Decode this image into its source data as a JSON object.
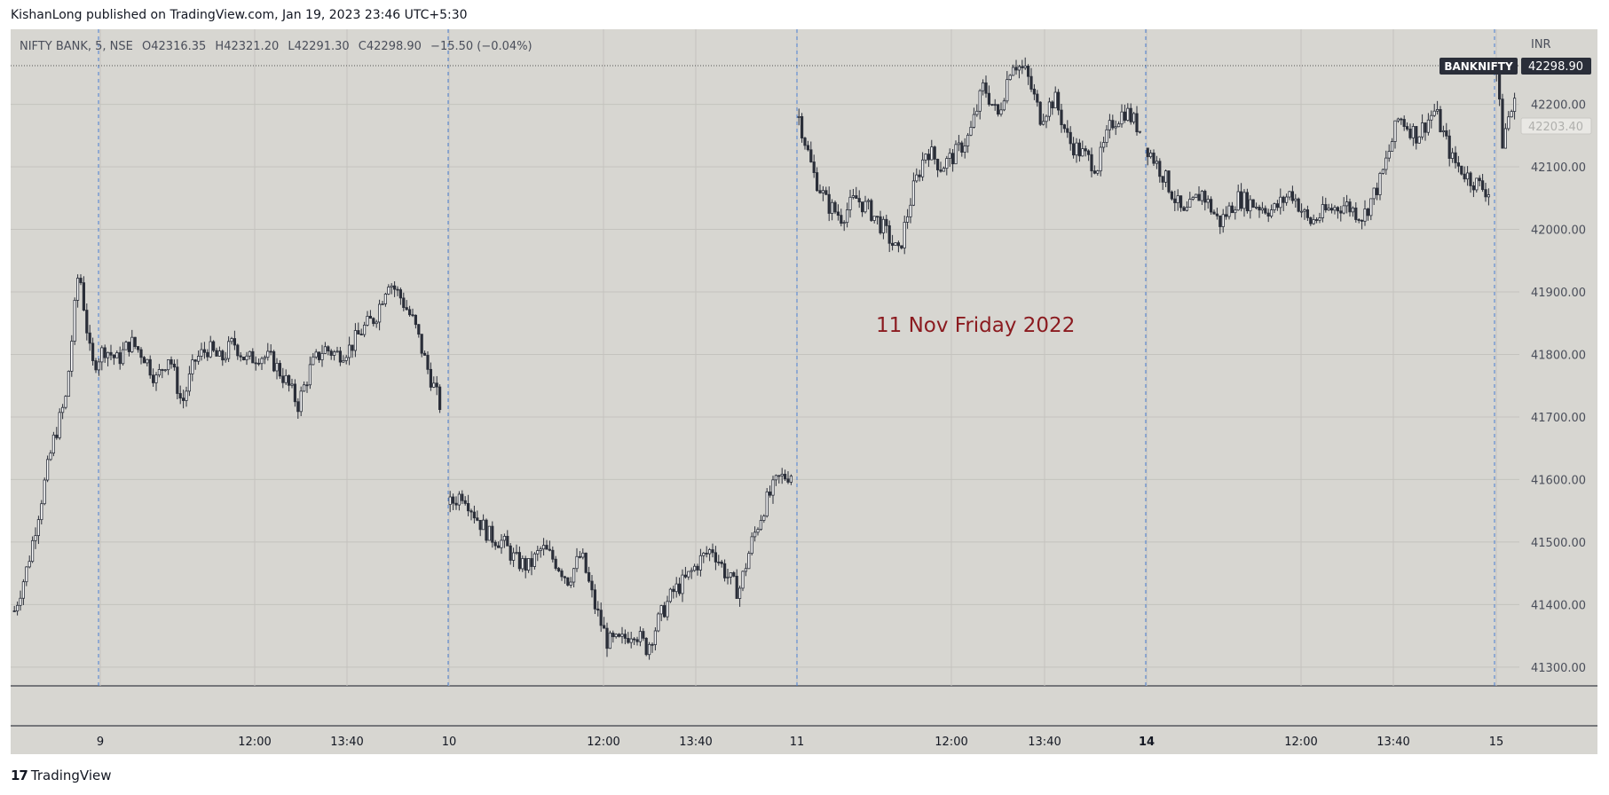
{
  "publisher": "KishanLong published on TradingView.com, Jan 19, 2023 23:46 UTC+5:30",
  "footer": {
    "brand": "TradingView",
    "brand_mark": "17"
  },
  "legend": {
    "symbol": "NIFTY BANK, 5, NSE",
    "open_label": "O",
    "open": "42316.35",
    "high_label": "H",
    "high": "42321.20",
    "low_label": "L",
    "low": "42291.30",
    "close_label": "C",
    "close": "42298.90",
    "change": "−15.50 (−0.04%)"
  },
  "annotation": "11 Nov Friday 2022",
  "colors": {
    "background": "#d7d6d1",
    "candle_up": "#ffffff",
    "candle_down": "#2a2e39",
    "wick": "#2a2e39",
    "session_line": "#4a7fd4",
    "annotation": "#8b1a1f",
    "badge": "#2a2e39"
  },
  "chart_data": {
    "type": "candlestick",
    "currency": "INR",
    "y_ticks": [
      "41300.00",
      "41400.00",
      "41500.00",
      "41600.00",
      "41700.00",
      "41800.00",
      "41900.00",
      "42000.00",
      "42100.00",
      "42200.00"
    ],
    "ylim": [
      41270,
      42320
    ],
    "x_ticks": [
      "9",
      "12:00",
      "13:40",
      "10",
      "12:00",
      "13:40",
      "11",
      "12:00",
      "13:40",
      "14",
      "12:00",
      "13:40",
      "15"
    ],
    "x_ticks_bold": [
      "14"
    ],
    "session_breaks": [
      "9",
      "10",
      "11",
      "14",
      "15"
    ],
    "last_price_label": "BANKNIFTY",
    "last_price": "42298.90",
    "prev_price_label": "42203.40",
    "grid": true,
    "sessions": [
      {
        "day": "9",
        "path": [
          41390,
          41460,
          41560,
          41660,
          41730,
          41940,
          41780,
          41810,
          41790,
          41820,
          41800,
          41760,
          41800,
          41720,
          41790,
          41810,
          41790,
          41820,
          41790,
          41800,
          41790,
          41760,
          41720,
          41780,
          41810,
          41800,
          41810,
          41840,
          41860,
          41920,
          41890,
          41850,
          41780,
          41720
        ]
      },
      {
        "day": "10",
        "path": [
          41560,
          41580,
          41540,
          41510,
          41500,
          41470,
          41460,
          41490,
          41470,
          41440,
          41480,
          41400,
          41340,
          41340,
          41360,
          41330,
          41380,
          41420,
          41440,
          41470,
          41490,
          41450,
          41420,
          41500,
          41560,
          41600,
          41610
        ]
      },
      {
        "day": "11",
        "path": [
          42180,
          42090,
          42040,
          42020,
          42050,
          42030,
          42000,
          41960,
          42060,
          42130,
          42100,
          42120,
          42150,
          42230,
          42180,
          42270,
          42250,
          42180,
          42210,
          42140,
          42120,
          42100,
          42170,
          42190,
          42160
        ]
      },
      {
        "day": "14",
        "path": [
          42130,
          42080,
          42020,
          42060,
          42010,
          42050,
          42040,
          42030,
          42060,
          42010,
          42030,
          42040,
          42020,
          42080,
          42180,
          42150,
          42190,
          42110,
          42080,
          42060
        ]
      },
      {
        "day": "15",
        "path": [
          42250,
          42140,
          42180,
          42200
        ]
      }
    ]
  }
}
